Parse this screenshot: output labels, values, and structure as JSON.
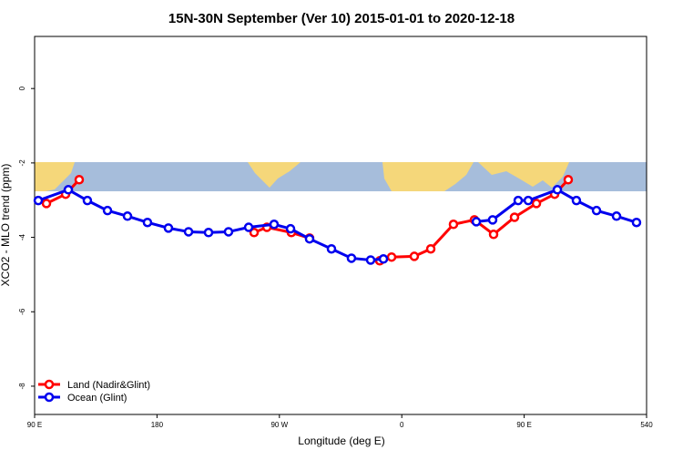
{
  "chart_data": {
    "type": "line",
    "title": "15N-30N September (Ver 10)   2015-01-01 to 2020-12-18",
    "xlabel": "Longitude (deg E)",
    "ylabel": "XCO2 - MLO trend (ppm)",
    "xlim": [
      90,
      540
    ],
    "ylim": [
      -8.76,
      1.4
    ],
    "xticks": [
      {
        "value": 90,
        "label": "90 E"
      },
      180,
      {
        "value": 270,
        "label": "90 W"
      },
      {
        "value": 360,
        "label": "0"
      },
      {
        "value": 450,
        "label": "90 E"
      },
      540
    ],
    "yticks": [
      -8,
      -6,
      -4,
      -2,
      0
    ],
    "legend": "bottom-left",
    "series": [
      {
        "name": "Land (Nadir&Glint)",
        "color": "#ff0000",
        "x": [
          98.7,
          112.8,
          122.8,
          null,
          251.4,
          260.8,
          278.8,
          292.2,
          null,
          343.8,
          352.5,
          369.2,
          381.3,
          398,
          413.4,
          427.5,
          442.9,
          459,
          472.4,
          482.4
        ],
        "values": [
          -3.09,
          -2.84,
          -2.45,
          null,
          -3.87,
          -3.73,
          -3.87,
          -4.02,
          null,
          -4.63,
          -4.53,
          -4.51,
          -4.31,
          -3.65,
          -3.53,
          -3.92,
          -3.46,
          -3.09,
          -2.84,
          -2.45
        ]
      },
      {
        "name": "Ocean (Glint)",
        "color": "#0000ee",
        "x": [
          92.7,
          114.8,
          128.8,
          143.6,
          158.3,
          173,
          188.4,
          203.2,
          217.9,
          232.6,
          247.4,
          266.1,
          278.2,
          292.2,
          308.3,
          323,
          337.1,
          346.5,
          null,
          414.8,
          426.8,
          445.6,
          453,
          474.4,
          488.4,
          503.2,
          517.9,
          532.6
        ],
        "values": [
          -3.01,
          -2.72,
          -3.01,
          -3.28,
          -3.43,
          -3.6,
          -3.75,
          -3.85,
          -3.87,
          -3.85,
          -3.73,
          -3.65,
          -3.77,
          -4.04,
          -4.31,
          -4.56,
          -4.61,
          -4.58,
          null,
          -3.58,
          -3.53,
          -3.01,
          -3.01,
          -2.72,
          -3.01,
          -3.28,
          -3.43,
          -3.6
        ]
      }
    ]
  }
}
